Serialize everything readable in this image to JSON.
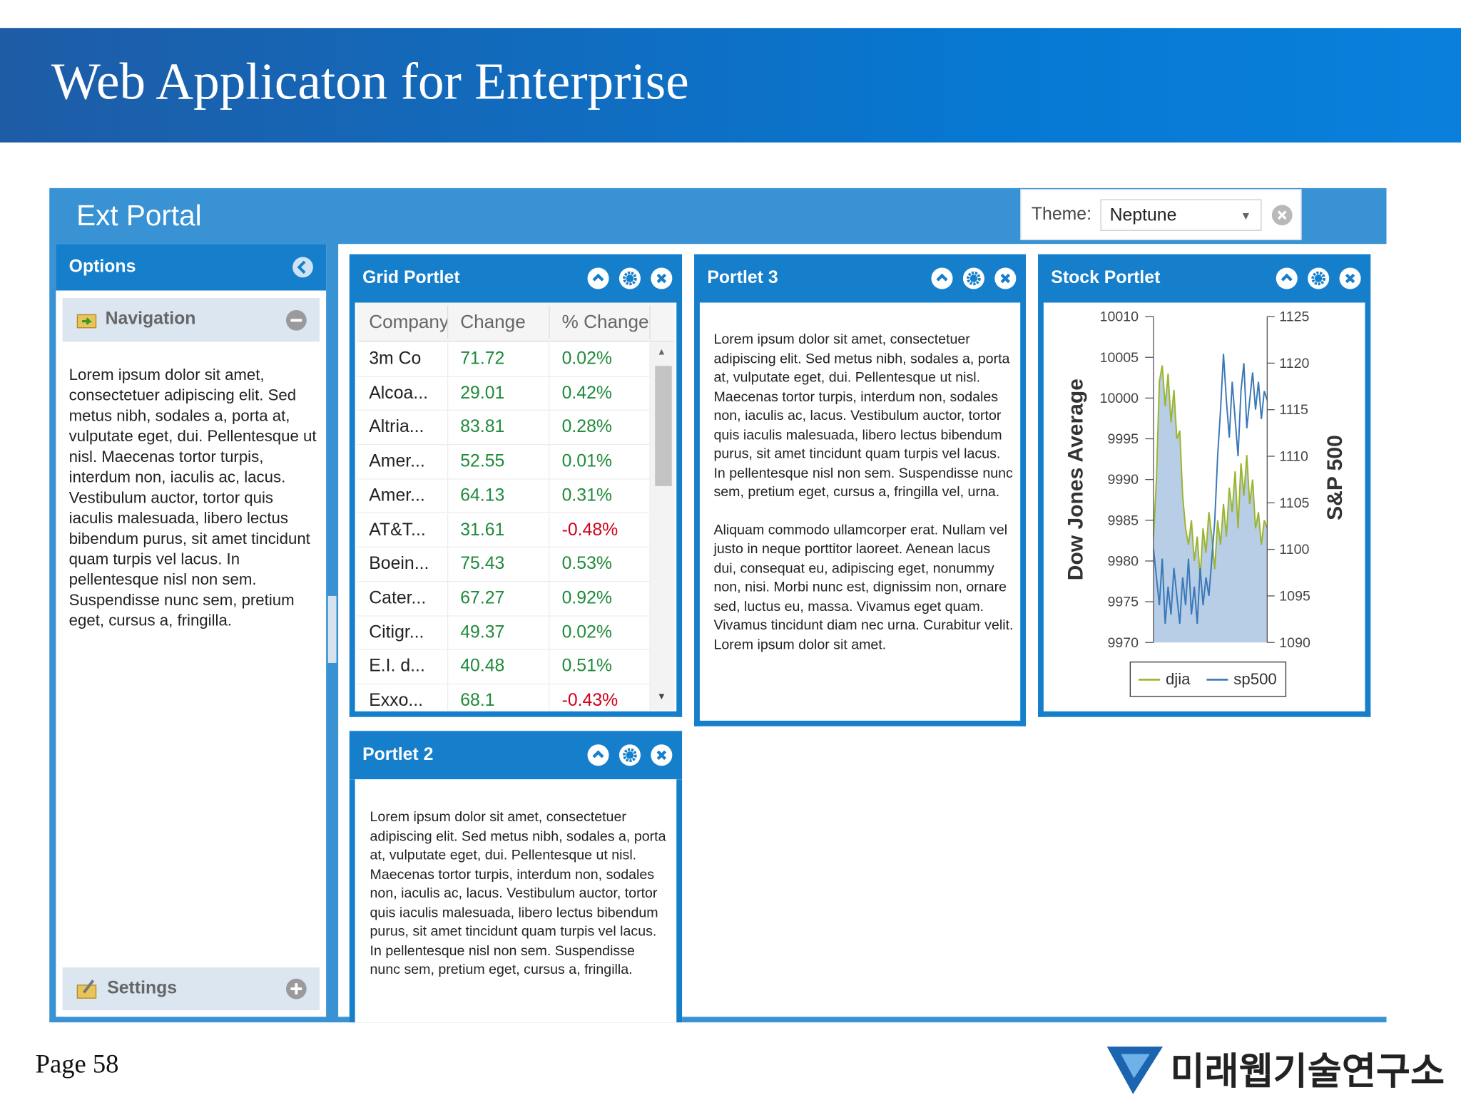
{
  "header": {
    "title": "Web Applicaton for Enterprise"
  },
  "portal": {
    "title": "Ext Portal",
    "theme_label": "Theme:",
    "theme_value": "Neptune"
  },
  "options": {
    "title": "Options",
    "navigation": "Navigation",
    "text": "Lorem ipsum dolor sit amet, consectetuer adipiscing elit. Sed metus nibh, sodales a, porta at, vulputate eget, dui. Pellentesque ut nisl. Maecenas tortor turpis, interdum non, iaculis ac, lacus. Vestibulum auctor, tortor quis iaculis malesuada, libero lectus bibendum purus, sit amet tincidunt quam turpis vel lacus. In pellentesque nisl non sem. Suspendisse nunc sem, pretium eget, cursus a, fringilla.",
    "settings": "Settings"
  },
  "grid_portlet": {
    "title": "Grid Portlet",
    "columns": [
      "Company",
      "Change",
      "% Change"
    ],
    "rows": [
      [
        "3m Co",
        "71.72",
        "0.02%"
      ],
      [
        "Alcoa...",
        "29.01",
        "0.42%"
      ],
      [
        "Altria...",
        "83.81",
        "0.28%"
      ],
      [
        "Amer...",
        "52.55",
        "0.01%"
      ],
      [
        "Amer...",
        "64.13",
        "0.31%"
      ],
      [
        "AT&T...",
        "31.61",
        "-0.48%"
      ],
      [
        "Boein...",
        "75.43",
        "0.53%"
      ],
      [
        "Cater...",
        "67.27",
        "0.92%"
      ],
      [
        "Citigr...",
        "49.37",
        "0.02%"
      ],
      [
        "E.I. d...",
        "40.48",
        "0.51%"
      ],
      [
        "Exxo...",
        "68.1",
        "-0.43%"
      ]
    ]
  },
  "portlet2": {
    "title": "Portlet 2",
    "text": "Lorem ipsum dolor sit amet, consectetuer adipiscing elit. Sed metus nibh, sodales a, porta at, vulputate eget, dui. Pellentesque ut nisl. Maecenas tortor turpis, interdum non, sodales non, iaculis ac, lacus. Vestibulum auctor, tortor quis iaculis malesuada, libero lectus bibendum purus, sit amet tincidunt quam turpis vel lacus. In pellentesque nisl non sem. Suspendisse nunc sem, pretium eget, cursus a, fringilla."
  },
  "portlet3": {
    "title": "Portlet 3",
    "paragraphs": [
      "Lorem ipsum dolor sit amet, consectetuer adipiscing elit. Sed metus nibh, sodales a, porta at, vulputate eget, dui. Pellentesque ut nisl. Maecenas tortor turpis, interdum non, sodales non, iaculis ac, lacus. Vestibulum auctor, tortor quis iaculis malesuada, libero lectus bibendum purus, sit amet tincidunt quam turpis vel lacus. In pellentesque nisl non sem. Suspendisse nunc sem, pretium eget, cursus a, fringilla vel, urna.",
      "Aliquam commodo ullamcorper erat. Nullam vel justo in neque porttitor laoreet. Aenean lacus dui, consequat eu, adipiscing eget, nonummy non, nisi. Morbi nunc est, dignissim non, ornare sed, luctus eu, massa. Vivamus eget quam. Vivamus tincidunt diam nec urna. Curabitur velit. Lorem ipsum dolor sit amet."
    ]
  },
  "chart_data": {
    "type": "line",
    "title": "Stock Portlet",
    "ylabel": "Dow Jones Average",
    "y2label": "S&P 500",
    "ylim": [
      9970,
      10010
    ],
    "yticks": [
      9970,
      9975,
      9980,
      9985,
      9990,
      9995,
      10000,
      10005,
      10010
    ],
    "y2lim": [
      1090,
      1125
    ],
    "y2ticks": [
      1090,
      1095,
      1100,
      1105,
      1110,
      1115,
      1120,
      1125
    ],
    "series": [
      {
        "name": "djia",
        "color": "#9bb52c",
        "kind": "area",
        "fill": "#b8cde6",
        "values": [
          9983,
          9990,
          10002,
          10004,
          9999,
          10003,
          9997,
          10001,
          9995,
          9996,
          9988,
          9984,
          9982,
          9985,
          9980,
          9983,
          9978,
          9984,
          9981,
          9986,
          9983,
          9979,
          9985,
          9982,
          9987,
          9983,
          9989,
          9986,
          9991,
          9984,
          9992,
          9988,
          9993,
          9987,
          9990,
          9984,
          9986,
          9982,
          9985,
          9984
        ]
      },
      {
        "name": "sp500",
        "color": "#3a78b8",
        "axis": "y2",
        "kind": "line",
        "values": [
          1100,
          1097,
          1094,
          1099,
          1092,
          1096,
          1093,
          1098,
          1095,
          1092,
          1097,
          1094,
          1099,
          1093,
          1096,
          1092,
          1098,
          1094,
          1097,
          1095,
          1099,
          1103,
          1110,
          1115,
          1121,
          1116,
          1112,
          1118,
          1114,
          1110,
          1117,
          1120,
          1113,
          1116,
          1119,
          1115,
          1118,
          1114,
          1117,
          1116
        ]
      }
    ]
  },
  "footer": {
    "page": "Page 58",
    "logo": "미래웹기술연구소"
  }
}
